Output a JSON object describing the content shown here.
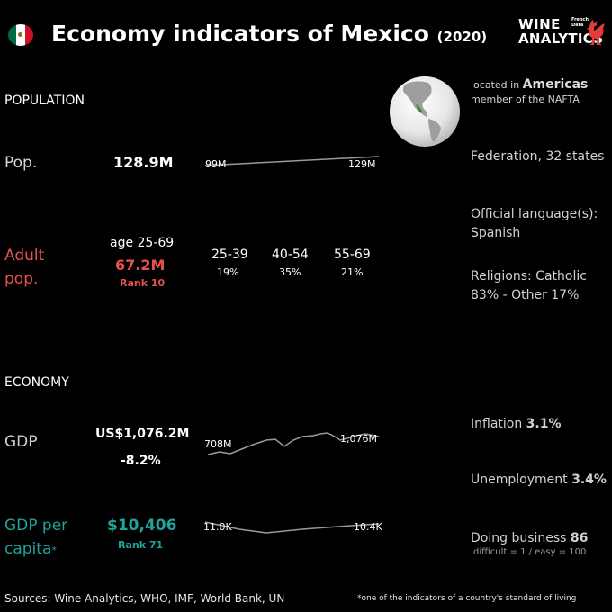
{
  "header": {
    "title": "Economy indicators of Mexico",
    "year": "(2020)",
    "flag_colors": [
      "#006847",
      "#ffffff",
      "#ce1126"
    ],
    "logo_line1": "WINE",
    "logo_line2": "ANALYTICS",
    "logo_tag1": "French",
    "logo_tag2": "Data",
    "logo_icon": "rooster-icon"
  },
  "location": {
    "located_prefix": "located in",
    "region": "Americas",
    "membership": "member of the NAFTA"
  },
  "population": {
    "section_title": "POPULATION",
    "pop_label": "Pop.",
    "pop_value": "128.9M",
    "pop_start": "99M",
    "pop_end": "129M",
    "adult_label_1": "Adult",
    "adult_label_2": "pop.",
    "adult_age": "age 25-69",
    "adult_value": "67.2M",
    "adult_rank": "Rank 10",
    "groups": [
      {
        "age": "25-39",
        "pct": "19%"
      },
      {
        "age": "40-54",
        "pct": "35%"
      },
      {
        "age": "55-69",
        "pct": "21%"
      }
    ]
  },
  "info": {
    "government": "Federation, 32 states",
    "language": "Official language(s): Spanish",
    "religion": "Religions: Catholic 83% - Other 17%"
  },
  "economy": {
    "section_title": "ECONOMY",
    "gdp_label": "GDP",
    "gdp_value": "US$1,076.2M",
    "gdp_change": "-8.2%",
    "gdp_start": "708M",
    "gdp_end": "1,076M",
    "gdpc_label_1": "GDP per",
    "gdpc_label_2": "capita",
    "gdpc_star": "*",
    "gdpc_value": "$10,406",
    "gdpc_rank": "Rank 71",
    "gdpc_start": "11.0K",
    "gdpc_end": "10.4K",
    "inflation_label": "Inflation",
    "inflation_value": "3.1%",
    "unemployment_label": "Unemployment",
    "unemployment_value": "3.4%",
    "business_label": "Doing business",
    "business_value": "86",
    "business_note": "difficult = 1 / easy = 100"
  },
  "footer": {
    "sources": "Sources: Wine Analytics, WHO, IMF, World Bank, UN",
    "note": "*one of the indicators of a country's standard of living"
  },
  "colors": {
    "red": "#e8504f",
    "teal": "#1fa39a",
    "spark": "#9a9a9a"
  }
}
